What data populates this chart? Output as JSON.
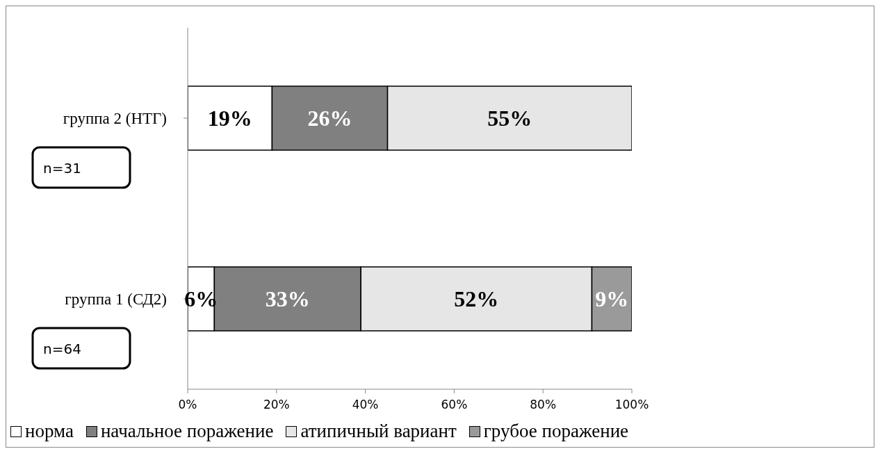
{
  "chart_data": {
    "type": "bar",
    "orientation": "horizontal",
    "stacked": true,
    "categories": [
      "группа 2 (НТГ)",
      "группа 1 (СД2)"
    ],
    "series": [
      {
        "name": "норма",
        "color": "#ffffff",
        "values": [
          19,
          6
        ],
        "value_labels": [
          "19%",
          "6%"
        ]
      },
      {
        "name": "начальное поражение",
        "color": "#808080",
        "values": [
          26,
          33
        ],
        "value_labels": [
          "26%",
          "33%"
        ]
      },
      {
        "name": "атипичный вариант",
        "color": "#e6e6e6",
        "values": [
          55,
          52
        ],
        "value_labels": [
          "55%",
          "52%"
        ]
      },
      {
        "name": "грубое поражение",
        "color": "#9a9a9a",
        "values": [
          null,
          9
        ],
        "value_labels": [
          null,
          "9%"
        ]
      }
    ],
    "xlim": [
      0,
      100
    ],
    "xticks": [
      {
        "value": 0,
        "label": "0%"
      },
      {
        "value": 20,
        "label": "20%"
      },
      {
        "value": 40,
        "label": "40%"
      },
      {
        "value": 60,
        "label": "60%"
      },
      {
        "value": 80,
        "label": "80%"
      },
      {
        "value": 100,
        "label": "100%"
      }
    ],
    "grid": false,
    "legend": "bottom",
    "annotations": [
      "n=31",
      "n=64"
    ]
  }
}
